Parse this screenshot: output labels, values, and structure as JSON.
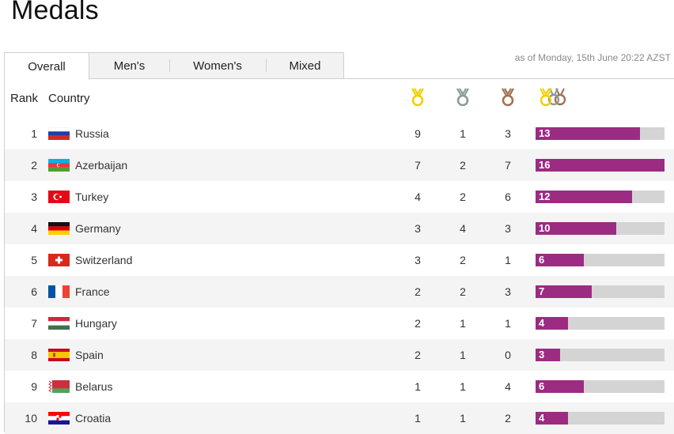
{
  "page": {
    "title": "Medals"
  },
  "tabs": [
    "Overall",
    "Men's",
    "Women's",
    "Mixed"
  ],
  "active_tab": "Overall",
  "as_of": "as of Monday, 15th June 20:22 AZST",
  "table": {
    "headers": {
      "rank": "Rank",
      "country": "Country"
    },
    "medal_icons": [
      "gold-medal-icon",
      "silver-medal-icon",
      "bronze-medal-icon",
      "total-medals-icon"
    ],
    "max_total": 16,
    "rows": [
      {
        "rank": "1",
        "country": "Russia",
        "flag": "russia-flag-icon",
        "gold": "9",
        "silver": "1",
        "bronze": "3",
        "total": "13"
      },
      {
        "rank": "2",
        "country": "Azerbaijan",
        "flag": "azerbaijan-flag-icon",
        "gold": "7",
        "silver": "2",
        "bronze": "7",
        "total": "16"
      },
      {
        "rank": "3",
        "country": "Turkey",
        "flag": "turkey-flag-icon",
        "gold": "4",
        "silver": "2",
        "bronze": "6",
        "total": "12"
      },
      {
        "rank": "4",
        "country": "Germany",
        "flag": "germany-flag-icon",
        "gold": "3",
        "silver": "4",
        "bronze": "3",
        "total": "10"
      },
      {
        "rank": "5",
        "country": "Switzerland",
        "flag": "switzerland-flag-icon",
        "gold": "3",
        "silver": "2",
        "bronze": "1",
        "total": "6"
      },
      {
        "rank": "6",
        "country": "France",
        "flag": "france-flag-icon",
        "gold": "2",
        "silver": "2",
        "bronze": "3",
        "total": "7"
      },
      {
        "rank": "7",
        "country": "Hungary",
        "flag": "hungary-flag-icon",
        "gold": "2",
        "silver": "1",
        "bronze": "1",
        "total": "4"
      },
      {
        "rank": "8",
        "country": "Spain",
        "flag": "spain-flag-icon",
        "gold": "2",
        "silver": "1",
        "bronze": "0",
        "total": "3"
      },
      {
        "rank": "9",
        "country": "Belarus",
        "flag": "belarus-flag-icon",
        "gold": "1",
        "silver": "1",
        "bronze": "4",
        "total": "6"
      },
      {
        "rank": "10",
        "country": "Croatia",
        "flag": "croatia-flag-icon",
        "gold": "1",
        "silver": "1",
        "bronze": "2",
        "total": "4"
      }
    ]
  },
  "colors": {
    "bar_fill": "#9b2c82",
    "bar_track": "#d4d4d4",
    "gold": "#f0d000",
    "silver": "#8a9a9a",
    "bronze": "#a07050"
  }
}
